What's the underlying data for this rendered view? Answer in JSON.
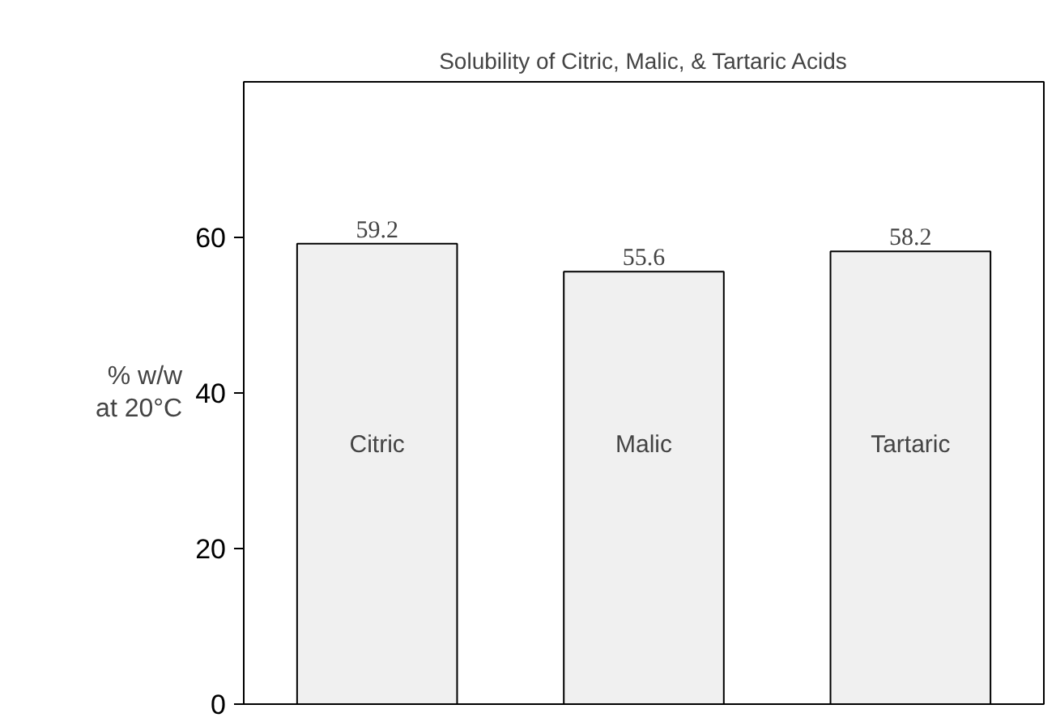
{
  "chart_data": {
    "type": "bar",
    "title": "Solubility of Citric, Malic, & Tartaric Acids",
    "ylabel": "% w/w at 20°C",
    "categories": [
      "Citric",
      "Malic",
      "Tartaric"
    ],
    "values": [
      59.2,
      55.6,
      58.2
    ],
    "color": "#f0f0f0",
    "ylim": [
      0,
      80
    ],
    "yticks": [
      0,
      20,
      40,
      60
    ],
    "grid": false,
    "data_labels": true,
    "tick_labels": "y"
  }
}
